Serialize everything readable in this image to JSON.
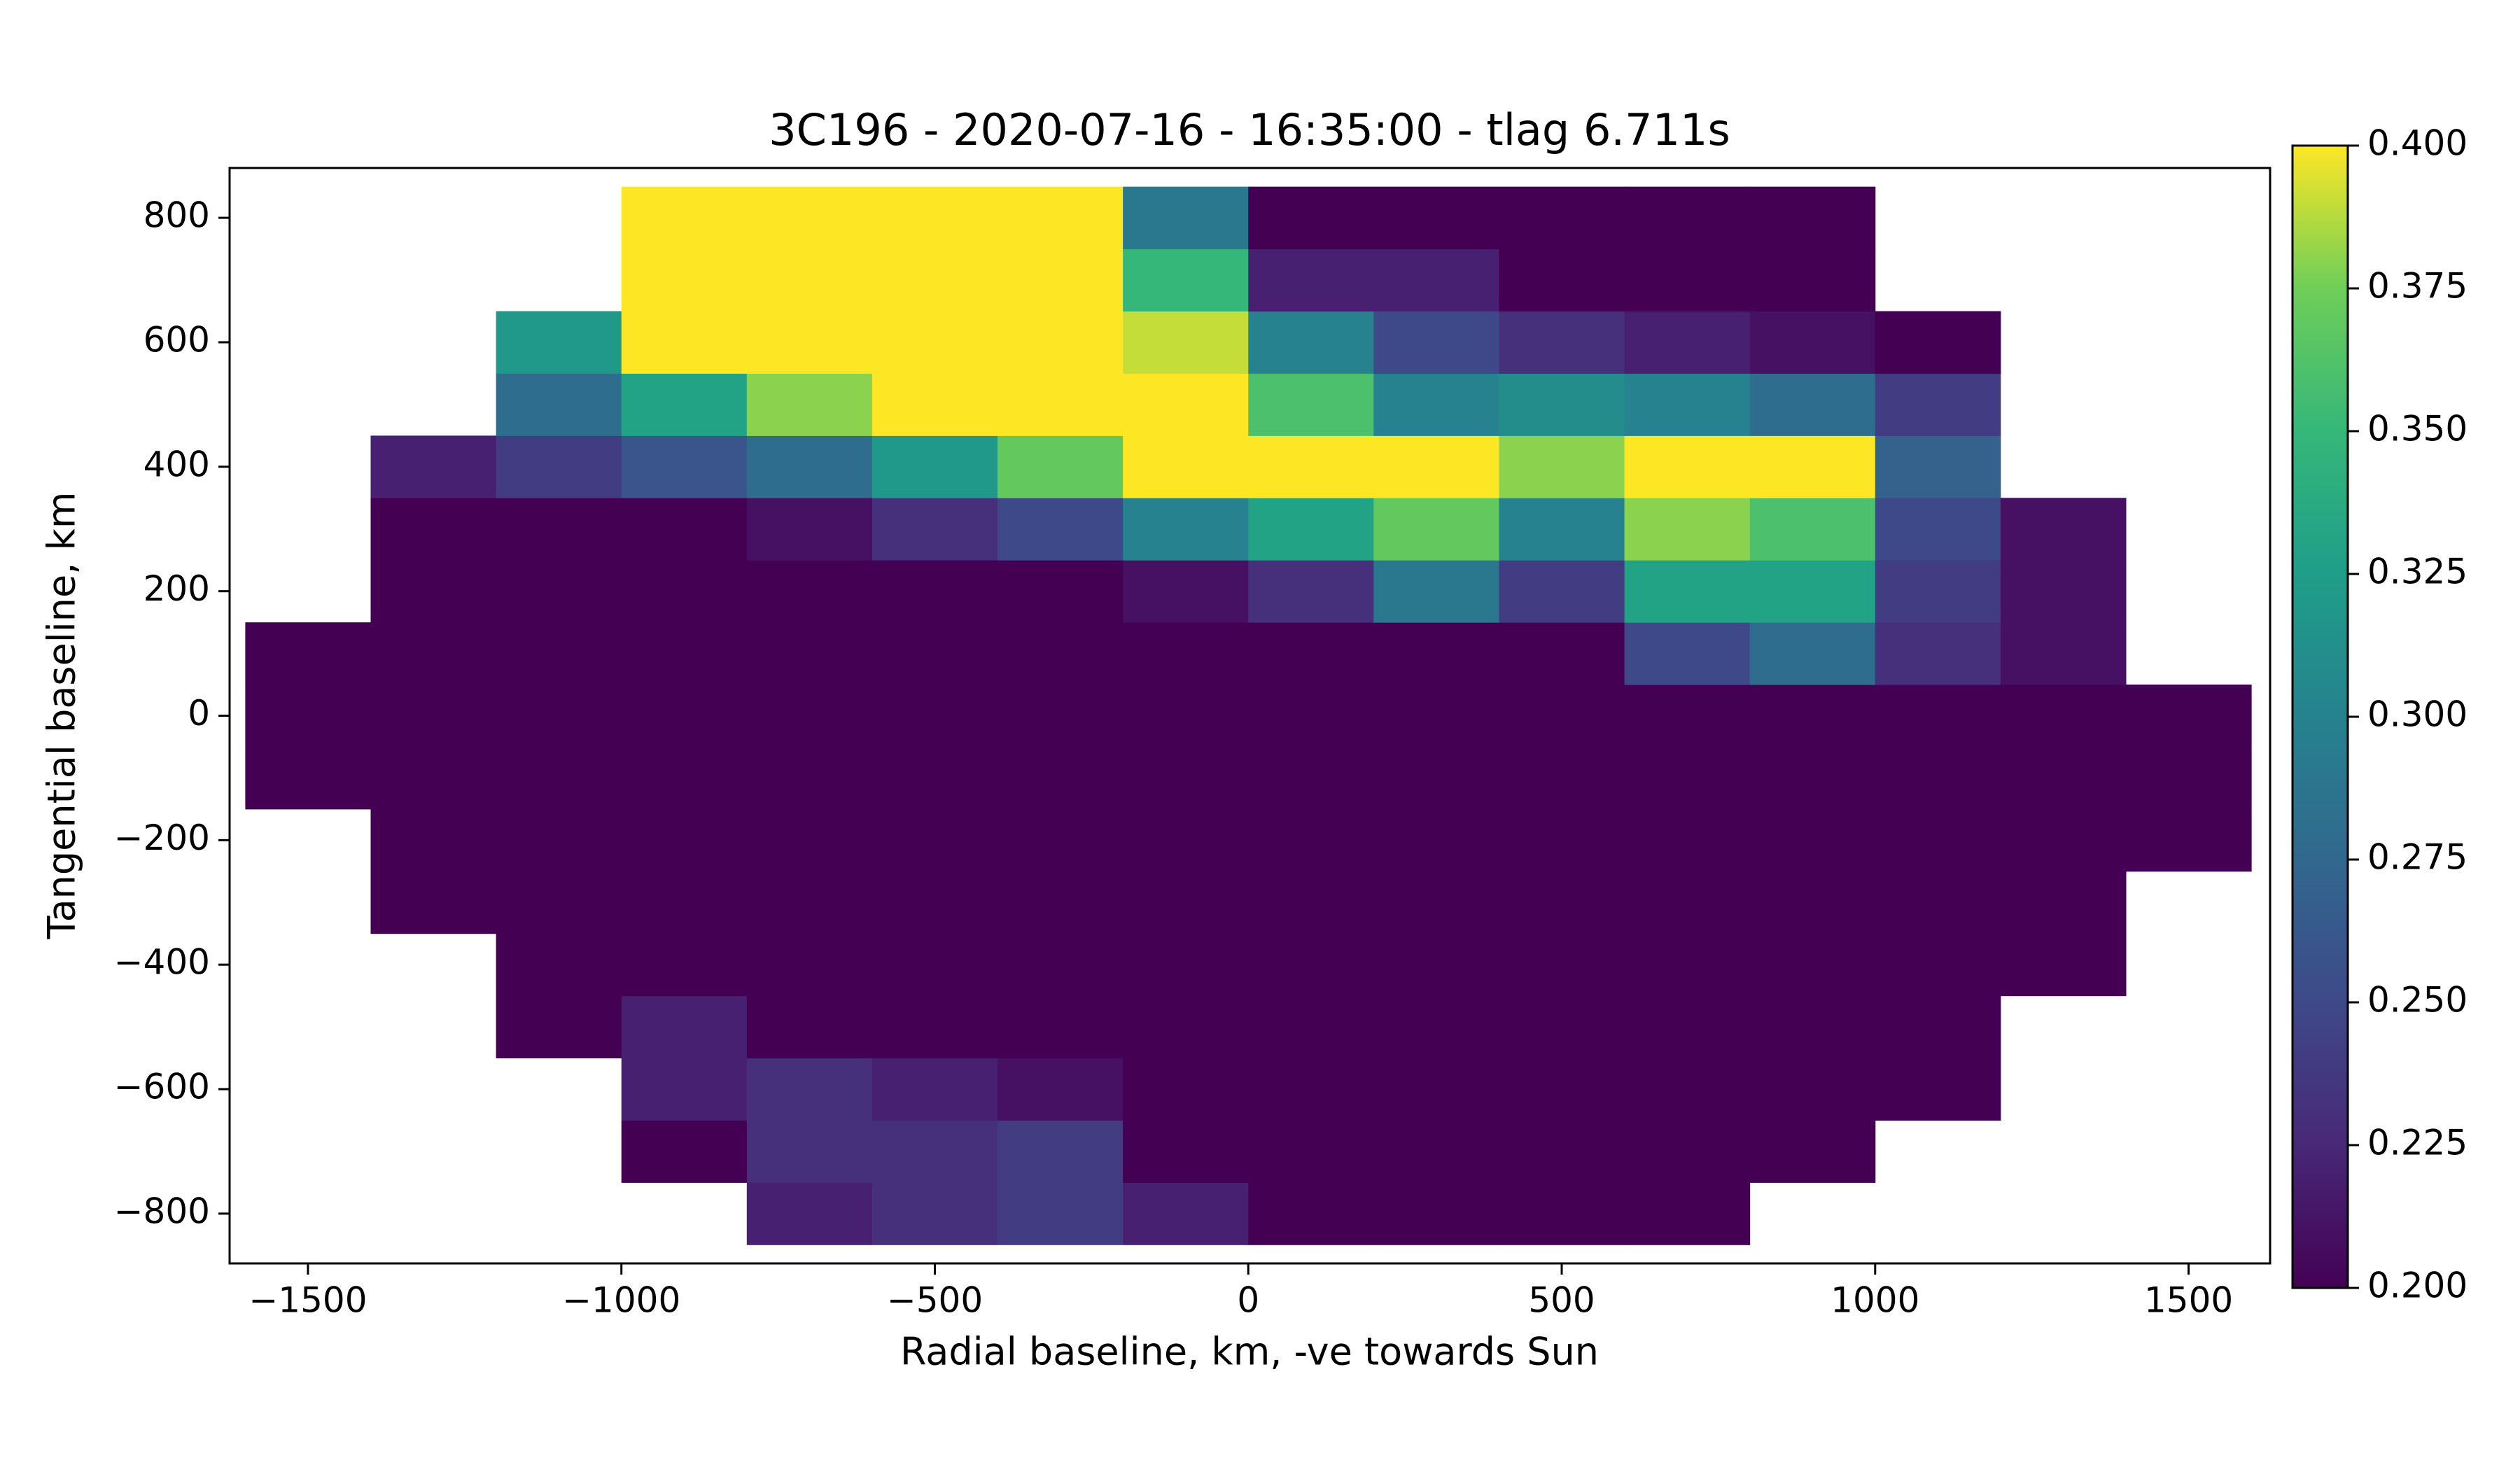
{
  "chart_data": {
    "type": "heatmap",
    "title": "3C196 - 2020-07-16 - 16:35:00 - tlag 6.711s",
    "x_label": "Radial baseline, km, -ve towards Sun",
    "y_label": "Tangential baseline, km",
    "colormap": "viridis",
    "x_edges": [
      -1600,
      -1400,
      -1200,
      -1000,
      -800,
      -600,
      -400,
      -200,
      0,
      200,
      400,
      600,
      800,
      1000,
      1200,
      1400,
      1600
    ],
    "y_edges": [
      -850,
      -750,
      -650,
      -550,
      -450,
      -350,
      -250,
      -150,
      -50,
      50,
      150,
      250,
      350,
      450,
      550,
      650,
      750,
      850
    ],
    "z": [
      [
        null,
        null,
        null,
        null,
        0.22,
        0.23,
        0.24,
        0.22,
        0.2,
        0.2,
        0.2,
        0.2,
        null,
        null,
        null,
        null
      ],
      [
        null,
        null,
        null,
        0.2,
        0.23,
        0.23,
        0.24,
        0.2,
        0.2,
        0.2,
        0.2,
        0.2,
        0.2,
        null,
        null,
        null
      ],
      [
        null,
        null,
        null,
        0.22,
        0.23,
        0.22,
        0.21,
        0.2,
        0.2,
        0.2,
        0.2,
        0.2,
        0.2,
        0.2,
        null,
        null
      ],
      [
        null,
        null,
        0.2,
        0.22,
        0.2,
        0.2,
        0.2,
        0.2,
        0.2,
        0.2,
        0.2,
        0.2,
        0.2,
        0.2,
        null,
        null
      ],
      [
        null,
        null,
        0.2,
        0.2,
        0.2,
        0.2,
        0.2,
        0.2,
        0.2,
        0.2,
        0.2,
        0.2,
        0.2,
        0.2,
        0.2,
        null
      ],
      [
        null,
        0.2,
        0.2,
        0.2,
        0.2,
        0.2,
        0.2,
        0.2,
        0.2,
        0.2,
        0.2,
        0.2,
        0.2,
        0.2,
        0.2,
        null
      ],
      [
        null,
        0.2,
        0.2,
        0.2,
        0.2,
        0.2,
        0.2,
        0.2,
        0.2,
        0.2,
        0.2,
        0.2,
        0.2,
        0.2,
        0.2,
        0.2
      ],
      [
        0.2,
        0.2,
        0.2,
        0.2,
        0.2,
        0.2,
        0.2,
        0.2,
        0.2,
        0.2,
        0.2,
        0.2,
        0.2,
        0.2,
        0.2,
        0.2
      ],
      [
        0.2,
        0.2,
        0.2,
        0.2,
        0.2,
        0.2,
        0.2,
        0.2,
        0.2,
        0.2,
        0.2,
        0.2,
        0.2,
        0.2,
        0.2,
        0.2
      ],
      [
        0.2,
        0.2,
        0.2,
        0.2,
        0.2,
        0.2,
        0.2,
        0.2,
        0.2,
        0.2,
        0.2,
        0.25,
        0.28,
        0.23,
        0.21,
        null
      ],
      [
        null,
        0.2,
        0.2,
        0.2,
        0.2,
        0.2,
        0.2,
        0.21,
        0.23,
        0.29,
        0.24,
        0.33,
        0.33,
        0.24,
        0.21,
        null
      ],
      [
        null,
        0.2,
        0.2,
        0.2,
        0.21,
        0.23,
        0.25,
        0.3,
        0.33,
        0.37,
        0.3,
        0.38,
        0.36,
        0.25,
        0.21,
        null
      ],
      [
        null,
        0.22,
        0.24,
        0.26,
        0.28,
        0.32,
        0.37,
        0.4,
        0.4,
        0.4,
        0.38,
        0.4,
        0.4,
        0.27,
        null,
        null
      ],
      [
        null,
        null,
        0.28,
        0.33,
        0.38,
        0.4,
        0.4,
        0.4,
        0.36,
        0.3,
        0.31,
        0.3,
        0.28,
        0.24,
        null,
        null
      ],
      [
        null,
        null,
        0.32,
        0.4,
        0.4,
        0.4,
        0.4,
        0.39,
        0.3,
        0.25,
        0.23,
        0.22,
        0.21,
        0.2,
        null,
        null
      ],
      [
        null,
        null,
        null,
        0.4,
        0.4,
        0.4,
        0.4,
        0.35,
        0.22,
        0.22,
        0.2,
        0.2,
        0.2,
        null,
        null,
        null
      ],
      [
        null,
        null,
        null,
        0.4,
        0.4,
        0.4,
        0.4,
        0.29,
        0.2,
        0.2,
        0.2,
        0.2,
        0.2,
        null,
        null,
        null
      ]
    ],
    "xlim": [
      -1625,
      1630
    ],
    "ylim": [
      -880,
      880
    ],
    "xticks": [
      {
        "value": -1500,
        "label": "−1500"
      },
      {
        "value": -1000,
        "label": "−1000"
      },
      {
        "value": -500,
        "label": "−500"
      },
      0,
      500,
      1000,
      1500
    ],
    "yticks": [
      {
        "value": -800,
        "label": "−800"
      },
      {
        "value": -600,
        "label": "−600"
      },
      {
        "value": -400,
        "label": "−400"
      },
      {
        "value": -200,
        "label": "−200"
      },
      0,
      200,
      400,
      600,
      800
    ],
    "clim": [
      0.2,
      0.4
    ],
    "cticks": [
      {
        "value": 0.2,
        "label": "0.200"
      },
      0.225,
      {
        "value": 0.25,
        "label": "0.250"
      },
      0.275,
      {
        "value": 0.3,
        "label": "0.300"
      },
      0.325,
      {
        "value": 0.35,
        "label": "0.350"
      },
      0.375,
      {
        "value": 0.4,
        "label": "0.400"
      }
    ]
  }
}
